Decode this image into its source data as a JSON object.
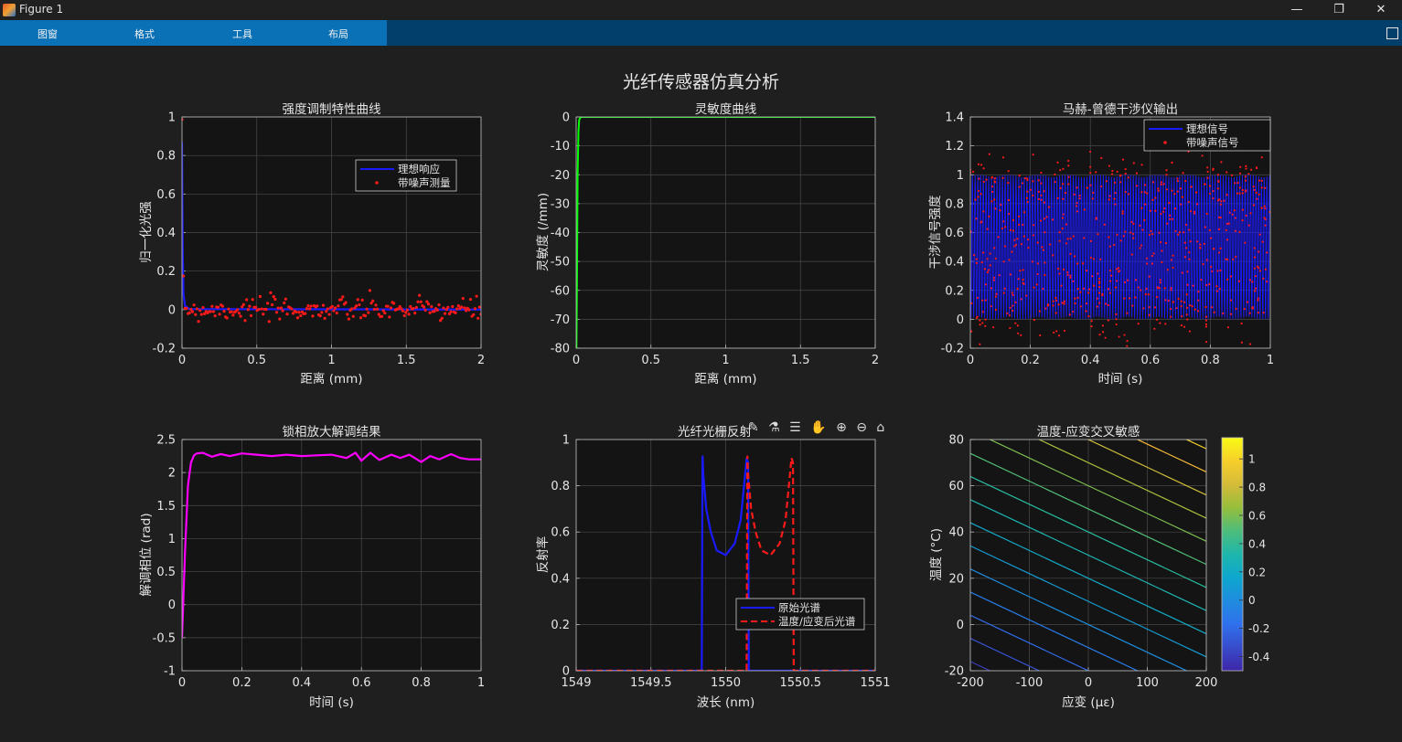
{
  "window": {
    "title": "Figure 1",
    "minimize": "—",
    "restore": "❐",
    "close": "✕"
  },
  "menu": {
    "items": [
      "图窗",
      "格式",
      "工具",
      "布局"
    ]
  },
  "figure_title": "光纤传感器仿真分析",
  "toolbar_icons": [
    "data-tip-icon",
    "brush-icon",
    "legend-icon",
    "pan-icon",
    "zoom-in-icon",
    "zoom-out-icon",
    "home-icon"
  ],
  "toolbar_glyphs": "✎ ⚗ ☰ ✋ ⊕ ⊖ ⌂",
  "colors": {
    "axes_bg": "#141414",
    "fig_bg": "#1f1f1f",
    "grid": "#4a4a4a",
    "blue": "#1a1aff",
    "red": "#ff1a1a",
    "green": "#00ff00",
    "magenta": "#ff00ff"
  },
  "chart_data": [
    {
      "id": "p1",
      "type": "line",
      "title": "强度调制特性曲线",
      "xlabel": "距离 (mm)",
      "ylabel": "归一化光强",
      "xlim": [
        0,
        2
      ],
      "ylim": [
        -0.2,
        1
      ],
      "xticks": [
        "0",
        "0.5",
        "1",
        "1.5",
        "2"
      ],
      "yticks": [
        "-0.2",
        "0",
        "0.2",
        "0.4",
        "0.6",
        "0.8",
        "1"
      ],
      "legend": {
        "position": "top-right",
        "entries": [
          "理想响应",
          "带噪声测量"
        ]
      },
      "series": [
        {
          "name": "理想响应",
          "style": "line",
          "color": "#1a1aff",
          "x": [
            0,
            0.005,
            0.01,
            0.02,
            0.05,
            2
          ],
          "y": [
            0.87,
            0.3,
            0.08,
            0.02,
            0.003,
            0
          ]
        },
        {
          "name": "带噪声测量",
          "style": "scatter",
          "color": "#ff1a1a",
          "note": "noisy points around 0, std ≈ 0.03"
        }
      ]
    },
    {
      "id": "p2",
      "type": "line",
      "title": "灵敏度曲线",
      "xlabel": "距离 (mm)",
      "ylabel": "灵敏度 (/mm)",
      "xlim": [
        0,
        2
      ],
      "ylim": [
        -80,
        0
      ],
      "xticks": [
        "0",
        "0.5",
        "1",
        "1.5",
        "2"
      ],
      "yticks": [
        "-80",
        "-70",
        "-60",
        "-50",
        "-40",
        "-30",
        "-20",
        "-10",
        "0"
      ],
      "series": [
        {
          "color": "#00ff00",
          "x": [
            0,
            0.002,
            0.005,
            0.01,
            0.015,
            0.02,
            0.03,
            2
          ],
          "y": [
            -80,
            -80,
            -60,
            -20,
            -5,
            -1,
            0,
            0
          ]
        }
      ]
    },
    {
      "id": "p3",
      "type": "line",
      "title": "马赫-曾德干涉仪输出",
      "xlabel": "时间 (s)",
      "ylabel": "干涉信号强度",
      "xlim": [
        0,
        1
      ],
      "ylim": [
        -0.2,
        1.4
      ],
      "xticks": [
        "0",
        "0.2",
        "0.4",
        "0.6",
        "0.8",
        "1"
      ],
      "yticks": [
        "-0.2",
        "0",
        "0.2",
        "0.4",
        "0.6",
        "0.8",
        "1",
        "1.2",
        "1.4"
      ],
      "legend": {
        "position": "top-right",
        "entries": [
          "理想信号",
          "带噪声信号"
        ]
      },
      "series": [
        {
          "name": "理想信号",
          "color": "#1a1aff",
          "note": "dense oscillation between 0 and 1"
        },
        {
          "name": "带噪声信号",
          "style": "scatter",
          "color": "#ff1a1a",
          "note": "noisy points between -0.2 and 1.3"
        }
      ]
    },
    {
      "id": "p4",
      "type": "line",
      "title": "锁相放大解调结果",
      "xlabel": "时间 (s)",
      "ylabel": "解调相位 (rad)",
      "xlim": [
        0,
        1
      ],
      "ylim": [
        -1,
        2.5
      ],
      "xticks": [
        "0",
        "0.2",
        "0.4",
        "0.6",
        "0.8",
        "1"
      ],
      "yticks": [
        "-1",
        "-0.5",
        "0",
        "0.5",
        "1",
        "1.5",
        "2",
        "2.5"
      ],
      "series": [
        {
          "color": "#ff00ff",
          "x": [
            0,
            0.01,
            0.02,
            0.03,
            0.04,
            0.05,
            0.07,
            0.1,
            0.13,
            0.16,
            0.2,
            0.25,
            0.3,
            0.35,
            0.4,
            0.45,
            0.5,
            0.55,
            0.58,
            0.6,
            0.63,
            0.66,
            0.7,
            0.73,
            0.76,
            0.8,
            0.83,
            0.86,
            0.9,
            0.93,
            0.96,
            1.0
          ],
          "y": [
            -0.5,
            0.8,
            1.8,
            2.15,
            2.26,
            2.29,
            2.3,
            2.24,
            2.28,
            2.25,
            2.29,
            2.27,
            2.25,
            2.27,
            2.25,
            2.26,
            2.27,
            2.22,
            2.3,
            2.18,
            2.3,
            2.19,
            2.27,
            2.22,
            2.27,
            2.16,
            2.25,
            2.2,
            2.28,
            2.22,
            2.2,
            2.2
          ]
        }
      ]
    },
    {
      "id": "p5",
      "type": "line",
      "title": "光纤光栅反射",
      "xlabel": "波长 (nm)",
      "ylabel": "反射率",
      "xlim": [
        1549,
        1551
      ],
      "ylim": [
        0,
        1
      ],
      "xticks": [
        "1549",
        "1549.5",
        "1550",
        "1550.5",
        "1551"
      ],
      "yticks": [
        "0",
        "0.2",
        "0.4",
        "0.6",
        "0.8",
        "1"
      ],
      "legend": {
        "position": "bottom-right",
        "entries": [
          "原始光谱",
          "温度/应变后光谱"
        ]
      },
      "series": [
        {
          "name": "原始光谱",
          "color": "#1a1aff",
          "dash": false,
          "x": [
            1549,
            1549.84,
            1549.845,
            1549.85,
            1549.87,
            1549.9,
            1549.94,
            1550.0,
            1550.06,
            1550.1,
            1550.13,
            1550.14,
            1550.15,
            1550.155,
            1551
          ],
          "y": [
            0,
            0,
            0.93,
            0.85,
            0.7,
            0.6,
            0.52,
            0.5,
            0.55,
            0.65,
            0.85,
            0.92,
            0.9,
            0,
            0
          ]
        },
        {
          "name": "温度/应变后光谱",
          "color": "#ff1a1a",
          "dash": true,
          "x": [
            1549,
            1550.14,
            1550.145,
            1550.15,
            1550.17,
            1550.2,
            1550.24,
            1550.3,
            1550.36,
            1550.4,
            1550.43,
            1550.44,
            1550.45,
            1550.455,
            1551
          ],
          "y": [
            0,
            0,
            0.93,
            0.85,
            0.7,
            0.6,
            0.52,
            0.5,
            0.55,
            0.65,
            0.85,
            0.92,
            0.9,
            0,
            0
          ]
        }
      ]
    },
    {
      "id": "p6",
      "type": "heatmap",
      "title": "温度-应变交叉敏感",
      "xlabel": "应变 (με)",
      "ylabel": "温度 (°C)",
      "xlim": [
        -200,
        200
      ],
      "ylim": [
        -20,
        80
      ],
      "xticks": [
        "-200",
        "-100",
        "0",
        "100",
        "200"
      ],
      "yticks": [
        "-20",
        "0",
        "20",
        "40",
        "60",
        "80"
      ],
      "colorbar": {
        "range": [
          -0.5,
          1.15
        ],
        "ticks": [
          "-0.4",
          "-0.2",
          "0",
          "0.2",
          "0.4",
          "0.6",
          "0.8",
          "1"
        ]
      },
      "contour": {
        "levels": [
          -0.4,
          -0.3,
          -0.2,
          -0.1,
          0,
          0.1,
          0.2,
          0.3,
          0.4,
          0.5,
          0.6,
          0.7,
          0.8,
          0.9,
          1.0,
          1.1
        ],
        "function": "z = 0.0012*strain + 0.01*temperature"
      }
    }
  ]
}
